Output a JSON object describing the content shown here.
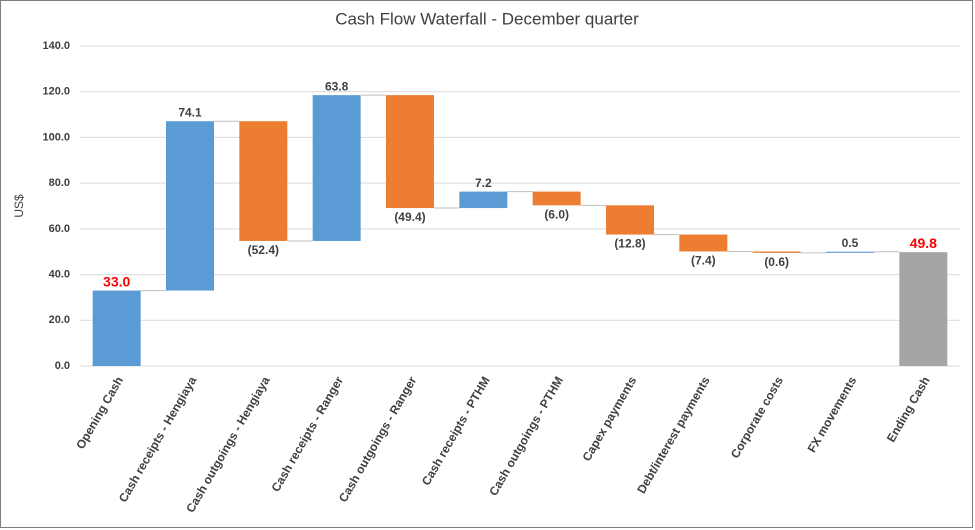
{
  "chart_data": {
    "type": "waterfall",
    "title": "Cash Flow Waterfall - December quarter",
    "y_label": "US$",
    "categories": [
      "Opening Cash",
      "Cash receipts - Hengiaya",
      "Cash outgoings - Hengiaya",
      "Cash receipts - Ranger",
      "Cash outgoings - Ranger",
      "Cash receipts - PTHM",
      "Cash outgoings - PTHM",
      "Capex payments",
      "Debt/interest payments",
      "Corporate costs",
      "FX movements",
      "Ending Cash"
    ],
    "values": [
      33.0,
      74.1,
      -52.4,
      63.8,
      -49.4,
      7.2,
      -6.0,
      -12.8,
      -7.4,
      -0.6,
      0.5,
      49.8
    ],
    "value_labels": [
      "33.0",
      "74.1",
      "(52.4)",
      "63.8",
      "(49.4)",
      "7.2",
      "(6.0)",
      "(12.8)",
      "(7.4)",
      "(0.6)",
      "0.5",
      "49.8"
    ],
    "totals": [
      0,
      11
    ],
    "colors": {
      "increase": "#5b9bd5",
      "decrease": "#ed7d31",
      "total_first": "#5b9bd5",
      "total_last": "#a5a5a5",
      "total_label": "#ff0000"
    },
    "ylim": [
      0,
      140
    ],
    "yticks": [
      {
        "value": 0,
        "label": "0.0"
      },
      {
        "value": 20,
        "label": "20.0"
      },
      {
        "value": 40,
        "label": "40.0"
      },
      {
        "value": 60,
        "label": "60.0"
      },
      {
        "value": 80,
        "label": "80.0"
      },
      {
        "value": 100,
        "label": "100.0"
      },
      {
        "value": 120,
        "label": "120.0"
      },
      {
        "value": 140,
        "label": "140.0"
      }
    ],
    "grid": true
  }
}
